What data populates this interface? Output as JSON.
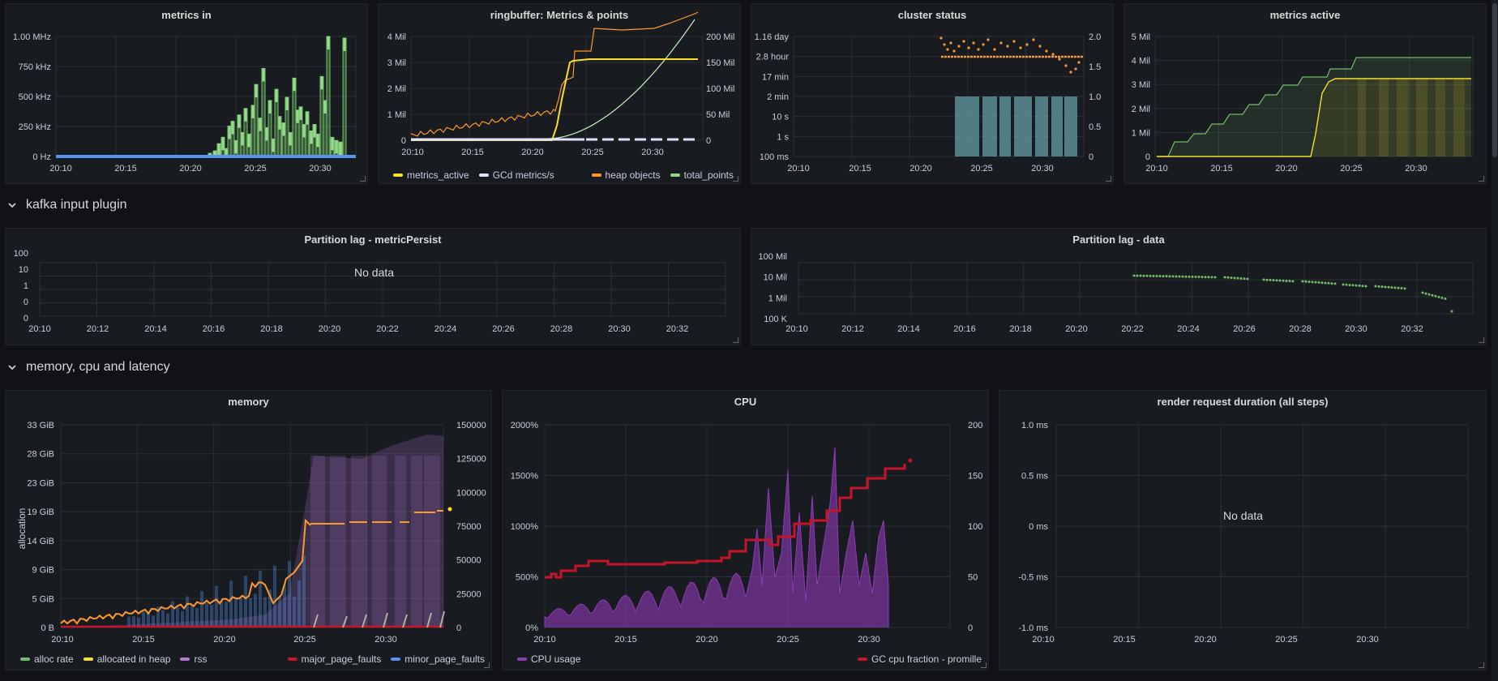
{
  "colors": {
    "green": "#73bf69",
    "yellow": "#fade2a",
    "orange": "#ff9830",
    "blue": "#5794f2",
    "white": "#e0e0ff",
    "purple": "#b877d9",
    "red": "#c4162a",
    "teal": "#5c8d97",
    "lightgreen": "#96d98d",
    "ltgreen2": "#c8f2c2"
  },
  "rows": {
    "kafka": "kafka input plugin",
    "memory": "memory, cpu and latency"
  },
  "panels": {
    "metrics_in": {
      "title": "metrics in",
      "y_ticks": [
        "1.00 MHz",
        "750 kHz",
        "500 kHz",
        "250 kHz",
        "0 Hz"
      ],
      "x_ticks": [
        "20:10",
        "20:15",
        "20:20",
        "20:25",
        "20:30"
      ]
    },
    "ringbuffer": {
      "title": "ringbuffer: Metrics & points",
      "y_left": [
        "4 Mil",
        "3 Mil",
        "2 Mil",
        "1 Mil",
        "0"
      ],
      "y_right": [
        "200 Mil",
        "150 Mil",
        "100 Mil",
        "50 Mil",
        "0"
      ],
      "x_ticks": [
        "20:10",
        "20:15",
        "20:20",
        "20:25",
        "20:30"
      ],
      "legend_left": [
        "metrics_active",
        "GCd metrics/s"
      ],
      "legend_right": [
        "heap objects",
        "total_points"
      ]
    },
    "cluster_status": {
      "title": "cluster status",
      "y_left": [
        "1.16 day",
        "2.8 hour",
        "17 min",
        "2 min",
        "10 s",
        "1 s",
        "100 ms"
      ],
      "y_right": [
        "2.0",
        "1.5",
        "1.0",
        "0.5",
        "0"
      ],
      "x_ticks": [
        "20:10",
        "20:15",
        "20:20",
        "20:25",
        "20:30"
      ]
    },
    "metrics_active": {
      "title": "metrics active",
      "y_ticks": [
        "5 Mil",
        "4 Mil",
        "3 Mil",
        "2 Mil",
        "1 Mil",
        "0"
      ],
      "x_ticks": [
        "20:10",
        "20:15",
        "20:20",
        "20:25",
        "20:30"
      ]
    },
    "partition_lag_mp": {
      "title": "Partition lag - metricPersist",
      "no_data": "No data",
      "y_ticks": [
        "100",
        "10",
        "1",
        "0",
        "0"
      ],
      "x_ticks": [
        "20:10",
        "20:12",
        "20:14",
        "20:16",
        "20:18",
        "20:20",
        "20:22",
        "20:24",
        "20:26",
        "20:28",
        "20:30",
        "20:32"
      ]
    },
    "partition_lag_data": {
      "title": "Partition lag - data",
      "y_ticks": [
        "100 Mil",
        "10 Mil",
        "1 Mil",
        "100 K"
      ],
      "x_ticks": [
        "20:10",
        "20:12",
        "20:14",
        "20:16",
        "20:18",
        "20:20",
        "20:22",
        "20:24",
        "20:26",
        "20:28",
        "20:30",
        "20:32"
      ]
    },
    "memory": {
      "title": "memory",
      "y_label": "allocation",
      "y_left": [
        "33 GiB",
        "28 GiB",
        "23 GiB",
        "19 GiB",
        "14 GiB",
        "9 GiB",
        "5 GiB",
        "0 B"
      ],
      "y_right": [
        "150000",
        "125000",
        "100000",
        "75000",
        "50000",
        "25000",
        "0"
      ],
      "x_ticks": [
        "20:10",
        "20:15",
        "20:20",
        "20:25",
        "20:30"
      ],
      "legend_left": [
        "alloc rate",
        "allocated in heap",
        "rss"
      ],
      "legend_right": [
        "major_page_faults",
        "minor_page_faults"
      ]
    },
    "cpu": {
      "title": "CPU",
      "y_left": [
        "2000%",
        "1500%",
        "1000%",
        "500%",
        "0%"
      ],
      "y_right": [
        "200",
        "150",
        "100",
        "50",
        "0"
      ],
      "x_ticks": [
        "20:10",
        "20:15",
        "20:20",
        "20:25",
        "20:30"
      ],
      "legend_left": [
        "CPU usage"
      ],
      "legend_right": [
        "GC cpu fraction - promille"
      ]
    },
    "render": {
      "title": "render request duration (all steps)",
      "no_data": "No data",
      "y_ticks": [
        "1.0 ms",
        "0.5 ms",
        "0 ms",
        "-0.5 ms",
        "-1.0 ms"
      ],
      "x_ticks": [
        "20:10",
        "20:15",
        "20:20",
        "20:25",
        "20:30"
      ]
    }
  }
}
